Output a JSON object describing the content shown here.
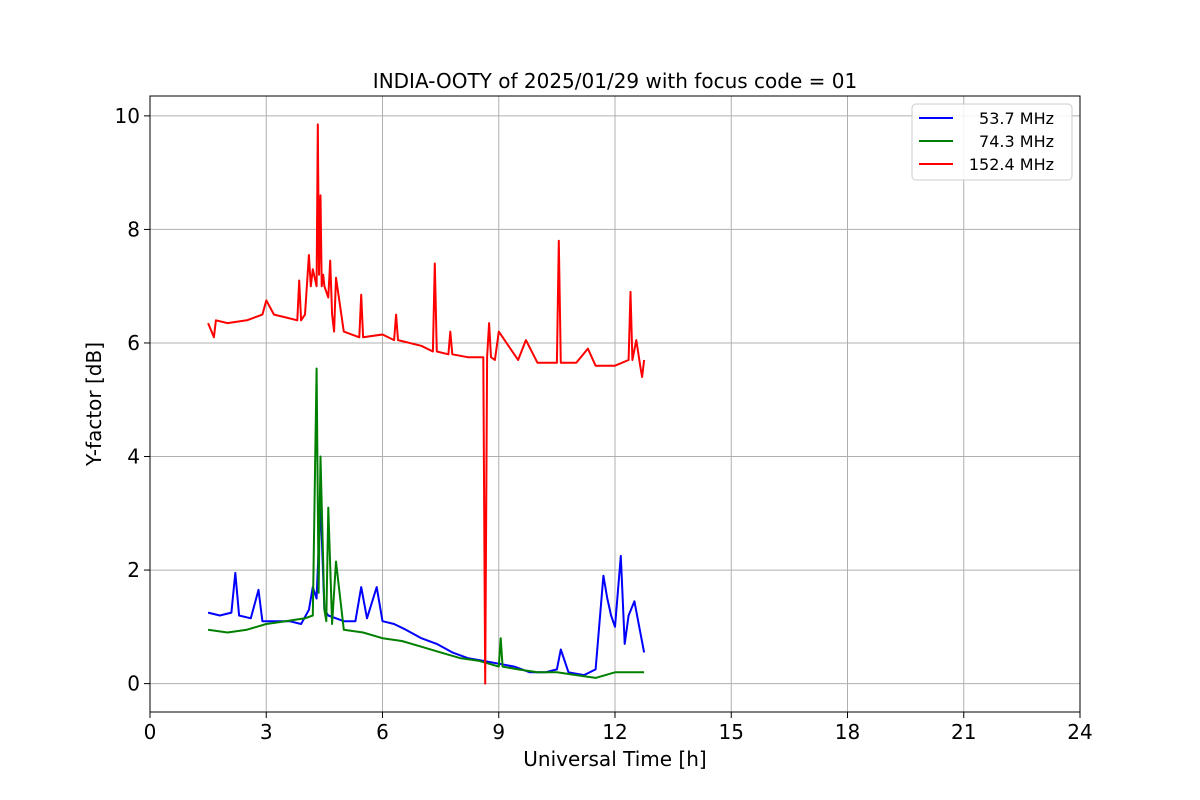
{
  "chart_data": {
    "type": "line",
    "title": "INDIA-OOTY of 2025/01/29 with focus code = 01",
    "xlabel": "Universal Time [h]",
    "ylabel": "Y-factor [dB]",
    "xlim": [
      0,
      24
    ],
    "ylim": [
      -0.5,
      10.35
    ],
    "xticks": [
      "0",
      "3",
      "6",
      "9",
      "12",
      "15",
      "18",
      "21",
      "24"
    ],
    "yticks": [
      "0",
      "2",
      "4",
      "6",
      "8",
      "10"
    ],
    "grid": true,
    "legend": "top-right",
    "series": [
      {
        "name": "53.7 MHz",
        "color": "#0000ff",
        "x": [
          1.5,
          1.8,
          2.1,
          2.2,
          2.3,
          2.6,
          2.8,
          2.9,
          3.2,
          3.6,
          3.9,
          4.1,
          4.2,
          4.3,
          4.4,
          4.5,
          4.6,
          4.8,
          5.0,
          5.3,
          5.45,
          5.6,
          5.85,
          6.0,
          6.3,
          6.6,
          7.0,
          7.4,
          7.8,
          8.2,
          8.6,
          9.0,
          9.4,
          9.8,
          10.2,
          10.5,
          10.6,
          10.8,
          11.2,
          11.5,
          11.7,
          11.8,
          11.9,
          12.0,
          12.15,
          12.25,
          12.35,
          12.5,
          12.75
        ],
        "y": [
          1.25,
          1.2,
          1.25,
          1.95,
          1.2,
          1.15,
          1.65,
          1.1,
          1.1,
          1.1,
          1.05,
          1.3,
          1.7,
          1.5,
          3.2,
          1.3,
          1.2,
          1.15,
          1.1,
          1.1,
          1.7,
          1.15,
          1.7,
          1.1,
          1.05,
          0.95,
          0.8,
          0.7,
          0.55,
          0.45,
          0.4,
          0.35,
          0.3,
          0.2,
          0.2,
          0.25,
          0.6,
          0.2,
          0.15,
          0.25,
          1.9,
          1.5,
          1.2,
          1.0,
          2.25,
          0.7,
          1.2,
          1.45,
          0.55
        ]
      },
      {
        "name": "74.3 MHz",
        "color": "#008000",
        "x": [
          1.5,
          2.0,
          2.5,
          3.0,
          3.5,
          4.0,
          4.2,
          4.3,
          4.35,
          4.4,
          4.5,
          4.55,
          4.6,
          4.7,
          4.8,
          5.0,
          5.5,
          6.0,
          6.5,
          7.0,
          7.5,
          8.0,
          8.5,
          9.0,
          9.05,
          9.1,
          9.5,
          10.0,
          10.5,
          11.0,
          11.5,
          12.0,
          12.5,
          12.75
        ],
        "y": [
          0.95,
          0.9,
          0.95,
          1.05,
          1.1,
          1.15,
          1.2,
          5.55,
          1.6,
          4.0,
          1.3,
          1.1,
          3.1,
          1.05,
          2.15,
          0.95,
          0.9,
          0.8,
          0.75,
          0.65,
          0.55,
          0.45,
          0.4,
          0.3,
          0.8,
          0.3,
          0.25,
          0.2,
          0.2,
          0.15,
          0.1,
          0.2,
          0.2,
          0.2
        ]
      },
      {
        "name": "152.4 MHz",
        "color": "#ff0000",
        "x": [
          1.5,
          1.65,
          1.7,
          2.0,
          2.5,
          2.9,
          3.0,
          3.2,
          3.5,
          3.8,
          3.85,
          3.9,
          4.0,
          4.1,
          4.15,
          4.2,
          4.3,
          4.33,
          4.36,
          4.4,
          4.43,
          4.47,
          4.5,
          4.6,
          4.65,
          4.7,
          4.75,
          4.8,
          5.0,
          5.4,
          5.45,
          5.5,
          6.0,
          6.3,
          6.35,
          6.4,
          7.0,
          7.3,
          7.35,
          7.4,
          7.7,
          7.75,
          7.8,
          8.2,
          8.6,
          8.65,
          8.7,
          8.75,
          8.8,
          8.9,
          9.0,
          9.5,
          9.7,
          10.0,
          10.5,
          10.55,
          10.6,
          11.0,
          11.3,
          11.5,
          12.0,
          12.35,
          12.4,
          12.45,
          12.55,
          12.65,
          12.7,
          12.75
        ],
        "y": [
          6.35,
          6.1,
          6.4,
          6.35,
          6.4,
          6.5,
          6.75,
          6.5,
          6.45,
          6.4,
          7.1,
          6.4,
          6.5,
          7.55,
          7.0,
          7.3,
          7.0,
          9.85,
          7.2,
          8.6,
          7.0,
          7.2,
          7.0,
          6.8,
          7.45,
          6.5,
          6.2,
          7.15,
          6.2,
          6.1,
          6.85,
          6.1,
          6.15,
          6.05,
          6.5,
          6.05,
          5.95,
          5.85,
          7.4,
          5.85,
          5.8,
          6.2,
          5.8,
          5.75,
          5.75,
          0.0,
          5.75,
          6.35,
          5.75,
          5.7,
          6.2,
          5.7,
          6.05,
          5.65,
          5.65,
          7.8,
          5.65,
          5.65,
          5.9,
          5.6,
          5.6,
          5.7,
          6.9,
          5.7,
          6.05,
          5.6,
          5.4,
          5.7
        ]
      }
    ]
  }
}
